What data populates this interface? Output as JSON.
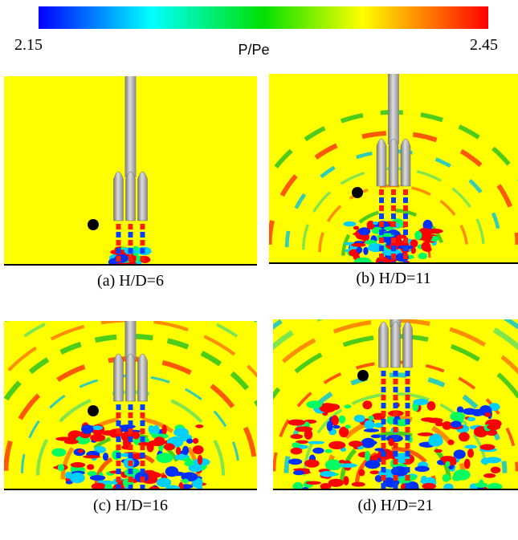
{
  "colorbar": {
    "min": 2.15,
    "max": 2.45,
    "label": "P/Pe"
  },
  "panels": [
    {
      "caption": "(a)  H/D=6"
    },
    {
      "caption": "(b)  H/D=11"
    },
    {
      "caption": "(c) H/D=16"
    },
    {
      "caption": "(d) H/D=21"
    }
  ]
}
